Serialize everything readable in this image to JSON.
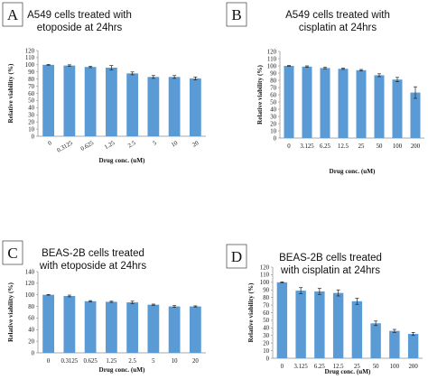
{
  "chart_data": [
    {
      "type": "bar",
      "panel": "A",
      "title_lines": [
        "A549 cells treated with",
        "etoposide at 24hrs"
      ],
      "xlabel": "Drug conc. (uM)",
      "ylabel": "Relative viability (%)",
      "ylim": [
        0,
        120
      ],
      "yticks": [
        0,
        10,
        20,
        30,
        40,
        50,
        60,
        70,
        80,
        90,
        100,
        110,
        120
      ],
      "categories": [
        "0",
        "0.3125",
        "0.625",
        "1.25",
        "2.5",
        "5",
        "10",
        "20"
      ],
      "values": [
        100,
        99,
        97,
        96,
        88,
        83,
        83,
        81
      ],
      "errors": [
        0.5,
        1,
        1,
        3,
        2,
        2,
        2,
        2
      ],
      "bar_color": "#5b9bd5",
      "grid": false
    },
    {
      "type": "bar",
      "panel": "B",
      "title_lines": [
        "A549 cells treated with",
        "cisplatin at 24hrs"
      ],
      "xlabel": "Drug conc. (uM)",
      "ylabel": "Relative viability (%)",
      "ylim": [
        0,
        120
      ],
      "yticks": [
        0,
        10,
        20,
        30,
        40,
        50,
        60,
        70,
        80,
        90,
        100,
        110,
        120
      ],
      "categories": [
        "0",
        "3.125",
        "6.25",
        "12.5",
        "25",
        "50",
        "100",
        "200"
      ],
      "values": [
        100,
        99,
        97,
        96,
        94,
        87,
        81,
        63
      ],
      "errors": [
        0.5,
        1,
        1,
        1,
        1,
        2,
        3,
        8
      ],
      "bar_color": "#5b9bd5",
      "grid": false
    },
    {
      "type": "bar",
      "panel": "C",
      "title_lines": [
        "BEAS-2B cells treated",
        "with etoposide at 24hrs"
      ],
      "xlabel": "Drug conc. (uM)",
      "ylabel": "Relative viability (%)",
      "ylim": [
        0,
        140
      ],
      "yticks": [
        0,
        20,
        40,
        60,
        80,
        100,
        120,
        140
      ],
      "categories": [
        "0",
        "0.3125",
        "0.625",
        "1.25",
        "2.5",
        "5",
        "10",
        "20"
      ],
      "values": [
        100,
        98,
        89,
        88,
        87,
        83,
        80,
        80
      ],
      "errors": [
        0.5,
        1.5,
        1,
        1,
        2,
        1,
        1.5,
        1
      ],
      "bar_color": "#5b9bd5",
      "grid": false
    },
    {
      "type": "bar",
      "panel": "D",
      "title_lines": [
        "BEAS-2B cells treated",
        "with cisplatin at 24hrs"
      ],
      "xlabel": "Drug conc. (uM)",
      "ylabel": "Relative viability (%)",
      "ylim": [
        0,
        120
      ],
      "yticks": [
        0,
        10,
        20,
        30,
        40,
        50,
        60,
        70,
        80,
        90,
        100,
        110,
        120
      ],
      "categories": [
        "0",
        "3.125",
        "6.25",
        "12.5",
        "25",
        "50",
        "100",
        "200"
      ],
      "values": [
        100,
        89,
        88,
        86,
        75,
        46,
        36,
        32
      ],
      "errors": [
        0.5,
        4,
        4,
        4,
        4,
        3,
        2,
        2
      ],
      "bar_color": "#5b9bd5",
      "grid": false
    }
  ]
}
